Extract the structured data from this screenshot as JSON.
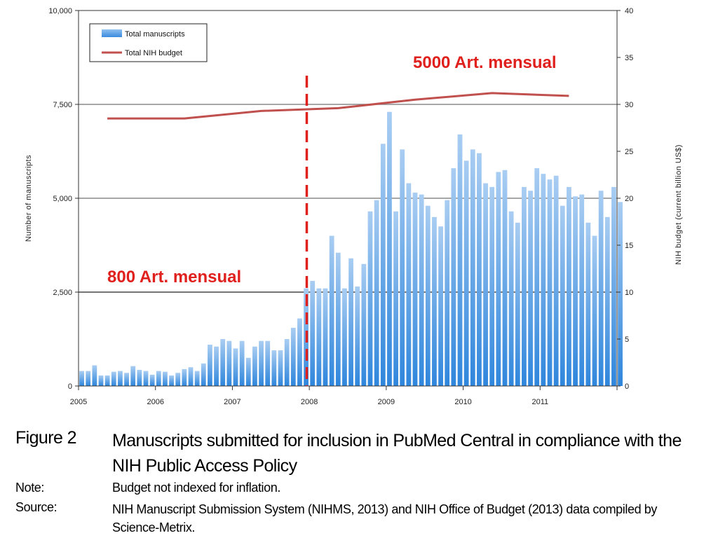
{
  "chart_data": {
    "type": "bar",
    "x_axis": {
      "ticks": [
        "2005",
        "2006",
        "2007",
        "2008",
        "2009",
        "2010",
        "2011"
      ],
      "range": [
        "2005-01",
        "2011-12"
      ]
    },
    "y_left": {
      "label": "Number of manuscripts",
      "ticks": [
        "0",
        "2,500",
        "5,000",
        "7,500",
        "10,000"
      ],
      "range": [
        0,
        10000
      ]
    },
    "y_right": {
      "label": "NIH budget (current billion US$)",
      "ticks": [
        "0",
        "5",
        "10",
        "15",
        "20",
        "25",
        "30",
        "35",
        "40"
      ],
      "range": [
        0,
        40
      ]
    },
    "grid": "horizontal at 2,500 / 5,000 / 7,500",
    "legend": {
      "placement": "top-left",
      "items": [
        "Total manuscripts",
        "Total NIH budget"
      ]
    },
    "series": [
      {
        "name": "Total manuscripts",
        "type": "bar",
        "axis": "left",
        "color": "#5ea0e6",
        "start_month": "2005-01",
        "values": [
          400,
          400,
          550,
          280,
          280,
          380,
          400,
          350,
          530,
          430,
          400,
          300,
          400,
          380,
          280,
          350,
          450,
          500,
          400,
          600,
          1100,
          1050,
          1250,
          1200,
          1000,
          1200,
          750,
          1050,
          1200,
          1200,
          950,
          950,
          1250,
          1550,
          1800,
          2600,
          2800,
          2600,
          2600,
          4000,
          3550,
          2600,
          3400,
          2650,
          3250,
          4650,
          4950,
          6450,
          7300,
          4650,
          6300,
          5400,
          5150,
          5100,
          4800,
          4500,
          4250,
          4950,
          5800,
          6700,
          6000,
          6300,
          6200,
          5400,
          5300,
          5700,
          5750,
          4650,
          4350,
          5300,
          5200,
          5800,
          5650,
          5500,
          5600,
          4800,
          5300,
          5050,
          5100,
          4350,
          4000,
          5200,
          4500,
          5300,
          4900
        ]
      },
      {
        "name": "Total NIH budget",
        "type": "line",
        "axis": "right",
        "color": "#c0504d",
        "points": [
          {
            "x": "2005-06",
            "y": 28.5
          },
          {
            "x": "2006-06",
            "y": 28.5
          },
          {
            "x": "2007-06",
            "y": 29.3
          },
          {
            "x": "2008-06",
            "y": 29.6
          },
          {
            "x": "2009-06",
            "y": 30.5
          },
          {
            "x": "2010-06",
            "y": 31.2
          },
          {
            "x": "2011-06",
            "y": 30.9
          }
        ]
      }
    ],
    "marker": {
      "x": "2007-12",
      "style": "dashed",
      "color": "#e0201c"
    },
    "annotations": {
      "before": "800 Art. mensual",
      "after": "5000 Art. mensual"
    }
  },
  "caption": {
    "figure_label": "Figure 2",
    "title": "Manuscripts submitted for inclusion in PubMed Central in compliance with the NIH Public Access Policy",
    "note_label": "Note:",
    "note_text": "Budget not indexed for inflation.",
    "source_label": "Source:",
    "source_text": "NIH Manuscript Submission System (NIHMS, 2013) and NIH Office of Budget (2013) data compiled by Science-Metrix."
  }
}
